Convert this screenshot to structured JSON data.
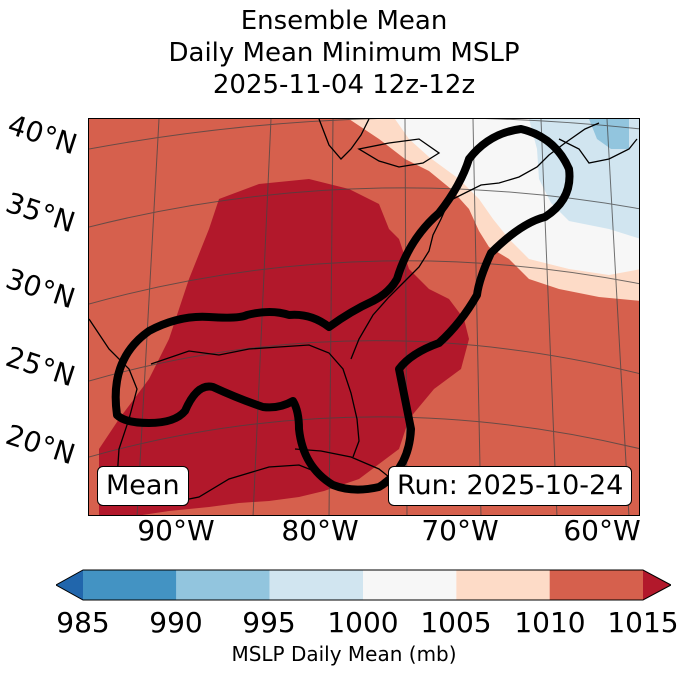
{
  "title": {
    "line1": "Ensemble Mean",
    "line2": "Daily Mean Minimum MSLP",
    "line3": "2025-11-04 12z-12z"
  },
  "map": {
    "latitude_labels": [
      "40°N",
      "35°N",
      "30°N",
      "25°N",
      "20°N"
    ],
    "longitude_labels": [
      "90°W",
      "80°W",
      "70°W",
      "60°W"
    ],
    "mean_label": "Mean",
    "run_label": "Run: 2025-10-24",
    "fill_colors": {
      "1005-1010": "#fddbc7",
      "1010-1015": "#d6604d",
      "1015+": "#b2182b",
      "1000-1005": "#f7f7f7",
      "995-1000": "#d1e5f0",
      "990-995": "#92c5de",
      "985-990": "#4393c3",
      "below-985": "#2166ac"
    }
  },
  "colorbar": {
    "ticks": [
      "985",
      "990",
      "995",
      "1000",
      "1005",
      "1010",
      "1015"
    ],
    "label": "MSLP Daily Mean (mb)",
    "colors": [
      "#4393c3",
      "#92c5de",
      "#d1e5f0",
      "#f7f7f7",
      "#fddbc7",
      "#d6604d"
    ],
    "under_color": "#2166ac",
    "over_color": "#b2182b"
  }
}
